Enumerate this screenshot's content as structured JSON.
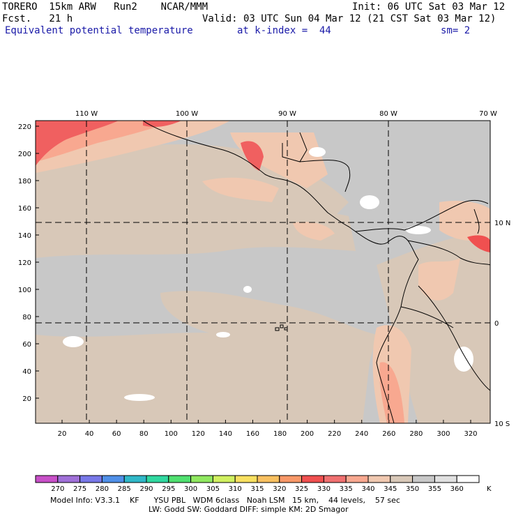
{
  "header": {
    "line1_left": "TORERO  15km ARW   Run2    NCAR/MMM",
    "line1_right": "Init: 06 UTC Sat 03 Mar 12",
    "line2_left": "Fcst.   21 h",
    "line2_right": "Valid: 03 UTC Sun 04 Mar 12 (21 CST Sat 03 Mar 12)",
    "line3_field": "Equivalent potential temperature",
    "line3_kindex": "at k-index =  44",
    "line3_sm": "sm= 2"
  },
  "map": {
    "lon_labels": [
      "110 W",
      "100 W",
      "90 W",
      "80 W",
      "70 W"
    ],
    "lat_labels": [
      "10 N",
      "0",
      "10 S"
    ],
    "y_ticks": [
      "220",
      "200",
      "180",
      "160",
      "140",
      "120",
      "100",
      "80",
      "60",
      "40",
      "20"
    ],
    "x_ticks": [
      "20",
      "40",
      "60",
      "80",
      "100",
      "120",
      "140",
      "160",
      "180",
      "200",
      "220",
      "240",
      "260",
      "280",
      "300",
      "320"
    ]
  },
  "colorbar": {
    "unit": "K",
    "labels": [
      "270",
      "275",
      "280",
      "285",
      "290",
      "295",
      "300",
      "305",
      "310",
      "315",
      "320",
      "325",
      "330",
      "335",
      "340",
      "345",
      "350",
      "355",
      "360"
    ],
    "colors": [
      "#c850c8",
      "#a070d8",
      "#7878e8",
      "#5090e8",
      "#30b8c8",
      "#30d8a0",
      "#50e070",
      "#90e860",
      "#d0f060",
      "#f8e060",
      "#f8c060",
      "#f89868",
      "#f05050",
      "#f07070",
      "#f8a890",
      "#f0c8b0",
      "#d8c8b8",
      "#c8c8c8",
      "#e0e0e0",
      "#ffffff"
    ]
  },
  "footer": {
    "line1": "Model Info: V3.3.1    KF      YSU PBL   WDM 6class   Noah LSM   15 km,    44 levels,    57 sec",
    "line2": "LW: Godd SW: Goddard DIFF: simple KM: 2D Smagor"
  }
}
